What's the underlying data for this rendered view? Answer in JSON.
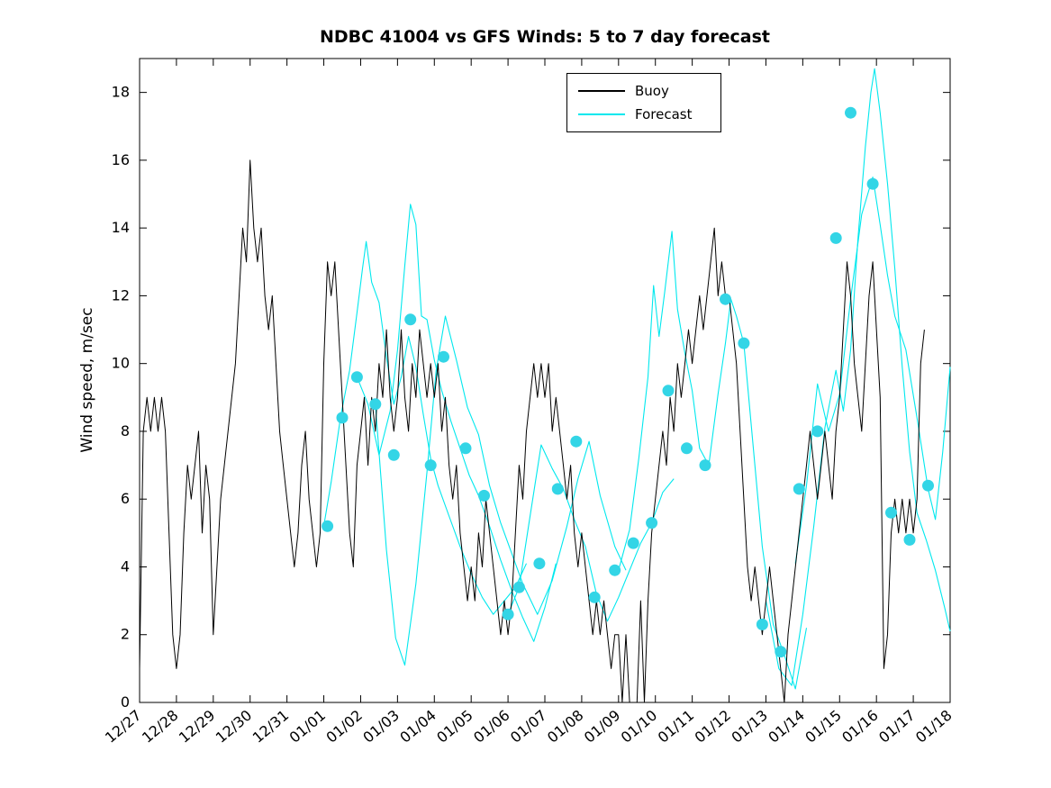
{
  "chart_data": {
    "type": "line",
    "title": "NDBC 41004 vs GFS Winds: 5 to 7 day forecast",
    "xlabel": "",
    "ylabel": "Wind speed, m/sec",
    "xlim": [
      0,
      22
    ],
    "ylim": [
      0,
      19
    ],
    "yticks": [
      0,
      2,
      4,
      6,
      8,
      10,
      12,
      14,
      16,
      18
    ],
    "x_tick_days": [
      0,
      1,
      2,
      3,
      4,
      5,
      6,
      7,
      8,
      9,
      10,
      11,
      12,
      13,
      14,
      15,
      16,
      17,
      18,
      19,
      20,
      21,
      22
    ],
    "x_tick_labels": [
      "12/27",
      "12/28",
      "12/29",
      "12/30",
      "12/31",
      "01/01",
      "01/02",
      "01/03",
      "01/04",
      "01/05",
      "01/06",
      "01/07",
      "01/08",
      "01/09",
      "01/10",
      "01/11",
      "01/12",
      "01/13",
      "01/14",
      "01/15",
      "01/16",
      "01/17",
      "01/18"
    ],
    "grid": false,
    "legend": {
      "position": "top-center",
      "entries": [
        {
          "label": "Buoy",
          "color": "#000000"
        },
        {
          "label": "Forecast",
          "color": "#00e8ee"
        }
      ]
    },
    "colors": {
      "buoy": "#000000",
      "forecast": "#00e8ee",
      "marker": "#33d5e6",
      "axis": "#000000"
    },
    "buoy": {
      "t_start": 0,
      "t_step": 0.1,
      "values": [
        1,
        8,
        9,
        8,
        9,
        8,
        9,
        8,
        5,
        2,
        1,
        2,
        5,
        7,
        6,
        7,
        8,
        5,
        7,
        6,
        2,
        4,
        6,
        7,
        8,
        9,
        10,
        12,
        14,
        13,
        16,
        14,
        13,
        14,
        12,
        11,
        12,
        10,
        8,
        7,
        6,
        5,
        4,
        5,
        7,
        8,
        6,
        5,
        4,
        5,
        10,
        13,
        12,
        13,
        11,
        9,
        7,
        5,
        4,
        7,
        8,
        9,
        7,
        9,
        8,
        10,
        9,
        11,
        9,
        8,
        9,
        11,
        9,
        8,
        10,
        9,
        11,
        10,
        9,
        10,
        9,
        10,
        8,
        9,
        7,
        6,
        7,
        5,
        4,
        3,
        4,
        3,
        5,
        4,
        6,
        5,
        4,
        3,
        2,
        3,
        2,
        3,
        5,
        7,
        6,
        8,
        9,
        10,
        9,
        10,
        9,
        10,
        8,
        9,
        8,
        7,
        6,
        7,
        5,
        4,
        5,
        4,
        3,
        2,
        3,
        2,
        3,
        2,
        1,
        2,
        2,
        0,
        2,
        0,
        null,
        0,
        3,
        0,
        3,
        5,
        6,
        7,
        8,
        7,
        9,
        8,
        10,
        9,
        10,
        11,
        10,
        11,
        12,
        11,
        12,
        13,
        14,
        12,
        13,
        12,
        12,
        11,
        10,
        8,
        6,
        4,
        3,
        4,
        3,
        2,
        3,
        4,
        3,
        2,
        1,
        0,
        2,
        3,
        4,
        5,
        6,
        7,
        8,
        7,
        6,
        7,
        8,
        7,
        6,
        8,
        9,
        11,
        13,
        12,
        10,
        9,
        8,
        10,
        12,
        13,
        11,
        9,
        1,
        2,
        5,
        6,
        5,
        6,
        5,
        6,
        5,
        6,
        10,
        11
      ]
    },
    "forecast_series": [
      {
        "t": [
          5.0,
          5.2,
          5.45,
          5.7,
          5.9,
          6.05,
          6.15,
          6.3,
          6.5,
          6.7,
          6.9,
          7.1,
          7.3,
          7.5,
          7.7,
          7.9,
          8.1,
          8.4,
          8.7,
          9.0,
          9.3,
          9.6,
          9.9,
          10.2,
          10.5
        ],
        "v": [
          5.2,
          6.5,
          8.4,
          9.8,
          11.5,
          12.8,
          13.6,
          12.4,
          11.8,
          10.2,
          8.8,
          9.6,
          10.8,
          9.9,
          8.5,
          7.2,
          6.4,
          5.5,
          4.6,
          3.8,
          3.1,
          2.6,
          3.0,
          3.4,
          4.1
        ]
      },
      {
        "t": [
          5.9,
          6.2,
          6.5,
          6.8,
          7.0,
          7.2,
          7.35,
          7.5,
          7.65,
          7.8,
          8.0,
          8.2,
          8.45,
          8.7,
          8.95,
          9.2,
          9.5,
          9.8,
          10.1,
          10.4,
          10.7,
          11.0,
          11.3
        ],
        "v": [
          9.6,
          8.8,
          7.3,
          8.6,
          10.4,
          12.9,
          14.7,
          14.1,
          11.4,
          11.3,
          10.1,
          9.2,
          8.3,
          7.5,
          6.7,
          6.1,
          5.2,
          4.2,
          3.3,
          2.5,
          1.8,
          2.8,
          4.1
        ]
      },
      {
        "t": [
          6.4,
          6.7,
          6.95,
          7.2,
          7.5,
          7.8,
          8.05,
          8.3,
          8.6,
          8.9,
          9.2,
          9.5,
          9.8,
          10.1,
          10.4,
          10.8,
          11.2,
          11.6,
          11.9,
          12.2,
          12.5,
          12.9,
          13.2
        ],
        "v": [
          8.8,
          4.5,
          1.9,
          1.1,
          3.5,
          6.8,
          9.8,
          11.4,
          10.1,
          8.7,
          7.9,
          6.4,
          5.3,
          4.4,
          3.5,
          2.6,
          3.6,
          5.2,
          6.6,
          7.7,
          6.1,
          4.6,
          3.9
        ]
      },
      {
        "t": [
          10.0,
          10.3,
          10.6,
          10.9,
          11.2,
          11.5,
          11.8,
          12.1,
          12.4,
          12.7,
          13.0,
          13.3,
          13.6,
          13.9,
          14.2,
          14.5
        ],
        "v": [
          2.6,
          3.4,
          5.5,
          7.6,
          6.9,
          6.3,
          5.4,
          4.6,
          3.2,
          2.4,
          3.1,
          3.9,
          4.7,
          5.3,
          6.2,
          6.6
        ]
      },
      {
        "t": [
          13.0,
          13.3,
          13.55,
          13.8,
          13.95,
          14.1,
          14.25,
          14.45,
          14.6,
          14.8,
          15.0,
          15.2,
          15.45,
          15.7,
          15.9,
          16.05,
          16.2,
          16.4,
          16.6,
          16.9,
          17.2,
          17.5,
          17.8,
          18.1
        ],
        "v": [
          3.9,
          5.1,
          7.2,
          9.6,
          12.3,
          10.8,
          12.1,
          13.9,
          11.6,
          10.3,
          9.2,
          7.5,
          7.0,
          9.1,
          10.6,
          11.9,
          11.4,
          10.6,
          8.2,
          4.6,
          2.3,
          1.4,
          0.4,
          2.2
        ]
      },
      {
        "t": [
          17.0,
          17.35,
          17.7,
          18.0,
          18.3,
          18.6,
          18.9,
          19.1,
          19.3,
          19.5,
          19.7,
          19.85,
          19.95,
          20.1,
          20.3,
          20.5,
          20.7,
          20.9,
          21.1,
          21.35,
          21.6,
          21.85,
          22.0
        ],
        "v": [
          3.0,
          1.0,
          0.5,
          2.6,
          5.2,
          8.1,
          9.8,
          8.6,
          10.4,
          13.7,
          16.4,
          18.0,
          18.7,
          17.4,
          15.3,
          12.8,
          9.9,
          7.4,
          5.6,
          4.8,
          3.9,
          2.8,
          2.1
        ]
      },
      {
        "t": [
          17.8,
          18.1,
          18.4,
          18.7,
          19.0,
          19.3,
          19.6,
          19.9,
          20.1,
          20.3,
          20.5,
          20.8,
          21.1,
          21.4,
          21.6,
          21.8,
          22.0
        ],
        "v": [
          4.1,
          6.4,
          9.4,
          8.0,
          9.1,
          11.9,
          14.4,
          15.5,
          14.1,
          12.6,
          11.4,
          10.4,
          8.4,
          6.3,
          5.4,
          7.4,
          9.9
        ]
      }
    ],
    "forecast_markers": {
      "t": [
        5.1,
        5.5,
        5.9,
        6.4,
        6.9,
        7.35,
        7.9,
        8.25,
        8.85,
        9.35,
        10.0,
        10.3,
        10.85,
        11.35,
        11.85,
        12.35,
        12.9,
        13.4,
        13.9,
        14.35,
        14.85,
        15.35,
        15.9,
        16.4,
        16.9,
        17.4,
        17.9,
        18.4,
        18.9,
        19.3,
        19.9,
        20.4,
        20.9,
        21.4
      ],
      "v": [
        5.2,
        8.4,
        9.6,
        8.8,
        7.3,
        11.3,
        7.0,
        10.2,
        7.5,
        6.1,
        2.6,
        3.4,
        4.1,
        6.3,
        7.7,
        3.1,
        3.9,
        4.7,
        5.3,
        9.2,
        7.5,
        7.0,
        11.9,
        10.6,
        2.3,
        1.5,
        6.3,
        8.0,
        13.7,
        17.4,
        15.3,
        5.6,
        4.8,
        6.4
      ]
    }
  }
}
